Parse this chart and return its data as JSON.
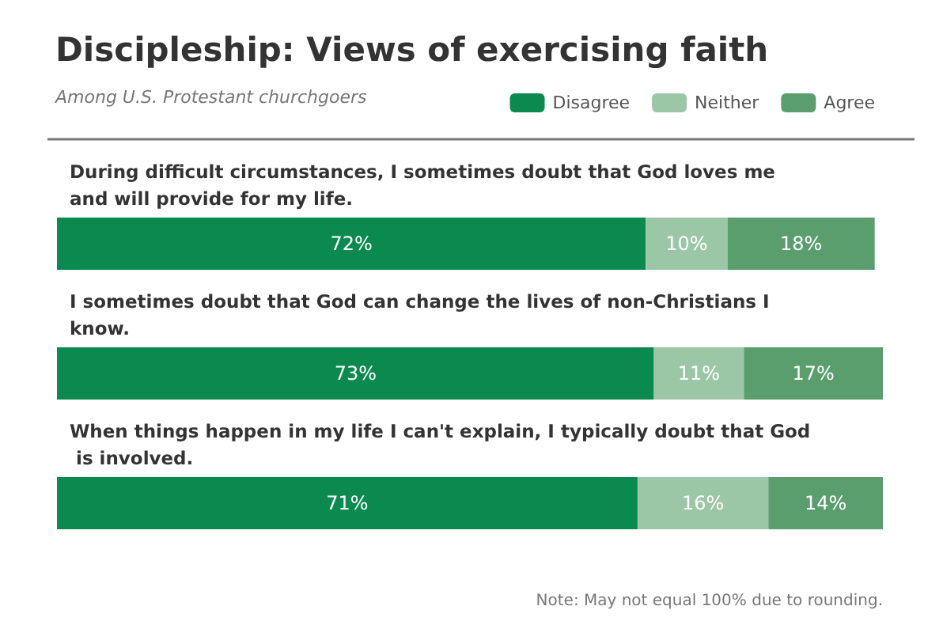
{
  "chart_data": {
    "type": "bar",
    "orientation": "horizontal",
    "stacked": true,
    "title": "Discipleship: Views of exercising faith",
    "subtitle": "Among U.S. Protestant churchgoers",
    "categories": [
      "During difficult circumstances, I sometimes doubt that God loves me and will provide for my life.",
      "I sometimes doubt that God can change the lives of non-Christians I know.",
      "When things happen in my life I can't explain, I typically doubt that God is involved."
    ],
    "series": [
      {
        "name": "Disagree",
        "color": "#0a8a4f",
        "values": [
          72,
          73,
          71
        ],
        "value_labels": [
          "72%",
          "73%",
          "71%"
        ]
      },
      {
        "name": "Neither",
        "color": "#9cc7a6",
        "values": [
          10,
          11,
          16
        ],
        "value_labels": [
          "10%",
          "11%",
          "16%"
        ]
      },
      {
        "name": "Agree",
        "color": "#5a9e6e",
        "values": [
          18,
          17,
          14
        ],
        "value_labels": [
          "18%",
          "17%",
          "14%"
        ]
      }
    ],
    "xlim": [
      0,
      101
    ],
    "tick_labels": "y",
    "legend": "top right",
    "annotations": [
      "Note: May not equal 100% due to rounding."
    ]
  }
}
